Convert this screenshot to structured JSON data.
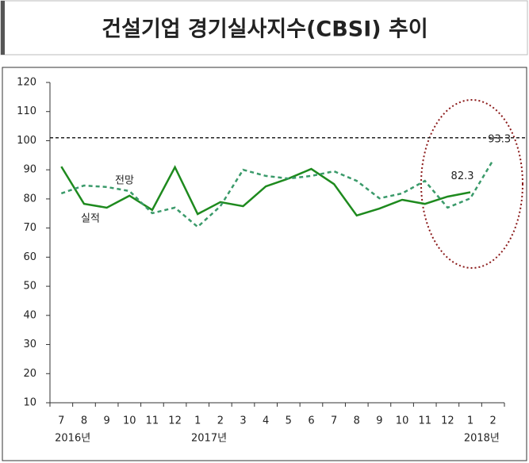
{
  "chart_data": {
    "type": "line",
    "title": "건설기업  경기실사지수(CBSI)  추이",
    "categories": [
      "7",
      "8",
      "9",
      "10",
      "11",
      "12",
      "1",
      "2",
      "3",
      "4",
      "5",
      "6",
      "7",
      "8",
      "9",
      "10",
      "11",
      "12",
      "1",
      "2"
    ],
    "year_labels": [
      {
        "label": "2016년",
        "start": 0
      },
      {
        "label": "2017년",
        "start": 6
      },
      {
        "label": "2018년",
        "start": 18
      }
    ],
    "series": [
      {
        "name": "실적",
        "color": "#1e8a1e",
        "dash": false,
        "values": [
          91.1,
          78.3,
          77.0,
          81.1,
          76.2,
          90.9,
          74.8,
          78.9,
          77.5,
          84.3,
          87.0,
          90.3,
          85.1,
          74.3,
          76.7,
          79.7,
          78.3,
          80.8,
          82.3,
          null
        ],
        "value_labels": [
          null,
          null,
          null,
          null,
          null,
          null,
          null,
          null,
          null,
          null,
          null,
          null,
          null,
          null,
          null,
          null,
          null,
          null,
          "82.3",
          null
        ]
      },
      {
        "name": "전망",
        "color": "#3a9a6a",
        "dash": true,
        "values": [
          81.9,
          84.6,
          84.1,
          82.7,
          75.1,
          77.0,
          70.4,
          77.5,
          90.0,
          87.9,
          87.0,
          87.9,
          89.5,
          86.2,
          80.2,
          81.9,
          86.2,
          77.0,
          80.2,
          93.3
        ],
        "value_labels": [
          null,
          null,
          null,
          null,
          null,
          null,
          null,
          null,
          null,
          null,
          null,
          null,
          null,
          null,
          null,
          null,
          null,
          null,
          null,
          "93.3"
        ]
      }
    ],
    "reference_line": 101,
    "ylim": [
      10,
      120
    ],
    "yticks": [
      10,
      20,
      30,
      40,
      50,
      60,
      70,
      80,
      90,
      100,
      110,
      120
    ]
  }
}
